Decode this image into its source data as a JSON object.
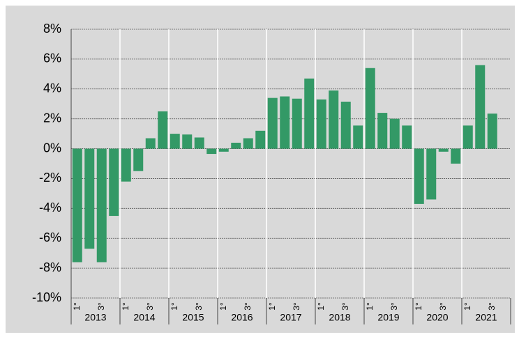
{
  "chart_data": {
    "type": "bar",
    "categories": [
      "1°",
      null,
      "3°",
      null,
      "1°",
      null,
      "3°",
      null,
      "1°",
      null,
      "3°",
      null,
      "1°",
      null,
      "3°",
      null,
      "1°",
      null,
      "3°",
      null,
      "1°",
      null,
      "3°",
      null,
      "1°",
      null,
      "3°",
      null,
      "1°",
      null,
      "3°",
      null,
      "1°",
      null,
      "3°",
      null
    ],
    "groups": [
      "2013",
      "2014",
      "2015",
      "2016",
      "2017",
      "2018",
      "2019",
      "2020",
      "2021"
    ],
    "values": [
      -7.6,
      -6.7,
      -7.6,
      -4.5,
      -2.2,
      -1.5,
      0.7,
      2.5,
      1.0,
      0.95,
      0.75,
      -0.35,
      -0.2,
      0.4,
      0.7,
      1.2,
      3.4,
      3.5,
      3.35,
      4.7,
      3.3,
      3.9,
      3.15,
      1.55,
      5.4,
      2.4,
      2.0,
      1.55,
      -3.7,
      -3.4,
      -0.2,
      -1.0,
      1.55,
      5.6,
      2.35,
      null
    ],
    "color": "#339966",
    "ylim": [
      -10,
      8
    ],
    "yticks": [
      {
        "value": -10,
        "label": "-10%"
      },
      {
        "value": -8,
        "label": "-8%"
      },
      {
        "value": -6,
        "label": "-6%"
      },
      {
        "value": -4,
        "label": "-4%"
      },
      {
        "value": -2,
        "label": "-2%"
      },
      {
        "value": 0,
        "label": "0%"
      },
      {
        "value": 2,
        "label": "2%"
      },
      {
        "value": 4,
        "label": "4%"
      },
      {
        "value": 6,
        "label": "6%"
      },
      {
        "value": 8,
        "label": "8%"
      }
    ],
    "grid": true
  }
}
